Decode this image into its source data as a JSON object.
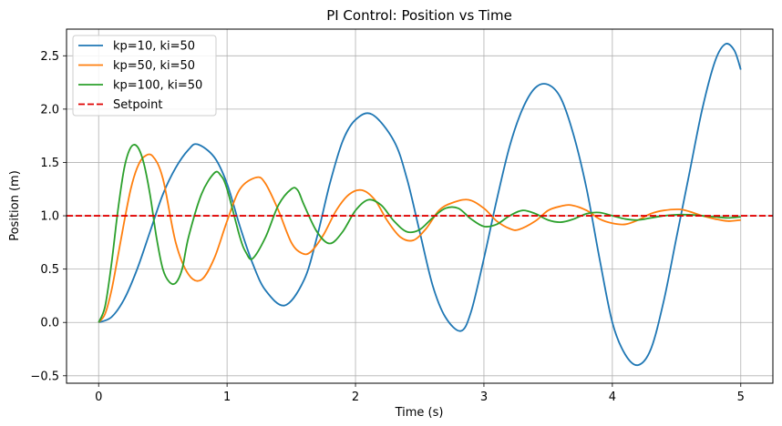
{
  "chart_data": {
    "type": "line",
    "title": "PI Control: Position vs Time",
    "xlabel": "Time (s)",
    "ylabel": "Position (m)",
    "xlim": [
      -0.25,
      5.25
    ],
    "ylim": [
      -0.57,
      2.75
    ],
    "xticks": [
      0,
      1,
      2,
      3,
      4,
      5
    ],
    "xtick_labels": [
      "0",
      "1",
      "2",
      "3",
      "4",
      "5"
    ],
    "yticks": [
      -0.5,
      0.0,
      0.5,
      1.0,
      1.5,
      2.0,
      2.5
    ],
    "ytick_labels": [
      "−0.5",
      "0.0",
      "0.5",
      "1.0",
      "1.5",
      "2.0",
      "2.5"
    ],
    "grid": true,
    "legend_position": "top-left",
    "series": [
      {
        "name": "kp=10, ki=50",
        "color": "#1f77b4",
        "x": [
          0,
          0.1,
          0.2,
          0.3,
          0.4,
          0.5,
          0.6,
          0.7,
          0.77,
          0.9,
          1.0,
          1.1,
          1.2,
          1.3,
          1.45,
          1.6,
          1.7,
          1.8,
          1.9,
          2.0,
          2.13,
          2.3,
          2.4,
          2.5,
          2.6,
          2.7,
          2.82,
          2.9,
          3.0,
          3.1,
          3.2,
          3.3,
          3.4,
          3.5,
          3.6,
          3.7,
          3.8,
          3.9,
          4.0,
          4.1,
          4.2,
          4.3,
          4.4,
          4.5,
          4.6,
          4.7,
          4.8,
          4.88,
          4.95,
          5.0
        ],
        "y": [
          0,
          0.05,
          0.22,
          0.5,
          0.85,
          1.2,
          1.45,
          1.62,
          1.67,
          1.55,
          1.3,
          0.9,
          0.55,
          0.3,
          0.16,
          0.4,
          0.8,
          1.3,
          1.7,
          1.9,
          1.95,
          1.7,
          1.35,
          0.85,
          0.35,
          0.05,
          -0.08,
          0.1,
          0.6,
          1.15,
          1.65,
          2.0,
          2.2,
          2.23,
          2.1,
          1.75,
          1.25,
          0.6,
          0.0,
          -0.3,
          -0.4,
          -0.25,
          0.2,
          0.8,
          1.4,
          2.0,
          2.45,
          2.61,
          2.55,
          2.37
        ]
      },
      {
        "name": "kp=50, ki=50",
        "color": "#ff7f0e",
        "x": [
          0,
          0.05,
          0.1,
          0.15,
          0.2,
          0.25,
          0.3,
          0.35,
          0.42,
          0.5,
          0.6,
          0.7,
          0.8,
          0.9,
          1.0,
          1.1,
          1.23,
          1.3,
          1.4,
          1.5,
          1.58,
          1.65,
          1.75,
          1.85,
          1.95,
          2.05,
          2.15,
          2.25,
          2.35,
          2.45,
          2.55,
          2.65,
          2.75,
          2.88,
          3.0,
          3.1,
          3.2,
          3.27,
          3.4,
          3.5,
          3.6,
          3.68,
          3.8,
          3.9,
          4.0,
          4.1,
          4.2,
          4.3,
          4.4,
          4.52,
          4.6,
          4.7,
          4.8,
          4.9,
          5.0
        ],
        "y": [
          0,
          0.08,
          0.3,
          0.62,
          0.95,
          1.25,
          1.45,
          1.55,
          1.56,
          1.35,
          0.75,
          0.45,
          0.4,
          0.6,
          0.95,
          1.25,
          1.36,
          1.3,
          1.05,
          0.75,
          0.65,
          0.66,
          0.82,
          1.05,
          1.2,
          1.24,
          1.15,
          0.95,
          0.8,
          0.77,
          0.88,
          1.05,
          1.12,
          1.15,
          1.07,
          0.95,
          0.88,
          0.87,
          0.95,
          1.05,
          1.09,
          1.1,
          1.05,
          0.97,
          0.93,
          0.92,
          0.96,
          1.02,
          1.05,
          1.06,
          1.04,
          1.0,
          0.97,
          0.95,
          0.96
        ]
      },
      {
        "name": "kp=100, ki=50",
        "color": "#2ca02c",
        "x": [
          0,
          0.05,
          0.1,
          0.15,
          0.2,
          0.25,
          0.3,
          0.35,
          0.4,
          0.45,
          0.5,
          0.55,
          0.6,
          0.65,
          0.7,
          0.8,
          0.9,
          0.95,
          1.0,
          1.1,
          1.15,
          1.2,
          1.3,
          1.4,
          1.5,
          1.55,
          1.6,
          1.7,
          1.8,
          1.9,
          2.0,
          2.1,
          2.2,
          2.3,
          2.4,
          2.5,
          2.6,
          2.7,
          2.8,
          2.9,
          3.0,
          3.1,
          3.2,
          3.3,
          3.4,
          3.5,
          3.6,
          3.7,
          3.8,
          3.9,
          4.0,
          4.1,
          4.2,
          4.3,
          4.4,
          4.5,
          4.6,
          4.7,
          4.8,
          4.9,
          5.0
        ],
        "y": [
          0,
          0.15,
          0.55,
          1.05,
          1.45,
          1.64,
          1.65,
          1.5,
          1.2,
          0.8,
          0.5,
          0.38,
          0.37,
          0.5,
          0.8,
          1.2,
          1.4,
          1.38,
          1.25,
          0.8,
          0.65,
          0.6,
          0.8,
          1.1,
          1.25,
          1.24,
          1.1,
          0.85,
          0.74,
          0.85,
          1.05,
          1.15,
          1.1,
          0.95,
          0.85,
          0.87,
          0.98,
          1.07,
          1.07,
          0.97,
          0.9,
          0.92,
          1.0,
          1.05,
          1.02,
          0.96,
          0.94,
          0.97,
          1.02,
          1.03,
          1.0,
          0.97,
          0.96,
          0.98,
          1.0,
          1.01,
          1.01,
          1.0,
          0.99,
          0.98,
          0.99
        ]
      },
      {
        "name": "Setpoint",
        "color": "#e00000",
        "dashed": true,
        "x": [
          -0.25,
          5.25
        ],
        "y": [
          1.0,
          1.0
        ]
      }
    ]
  }
}
